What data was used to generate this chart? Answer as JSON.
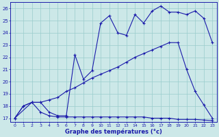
{
  "xlabel": "Graphe des températures (°c)",
  "bg_color": "#cce8e8",
  "grid_color": "#99cccc",
  "line_color": "#1a1aaa",
  "xlim": [
    -0.5,
    23.5
  ],
  "ylim": [
    16.7,
    26.5
  ],
  "xticks": [
    0,
    1,
    2,
    3,
    4,
    5,
    6,
    7,
    8,
    9,
    10,
    11,
    12,
    13,
    14,
    15,
    16,
    17,
    18,
    19,
    20,
    21,
    22,
    23
  ],
  "yticks": [
    17,
    18,
    19,
    20,
    21,
    22,
    23,
    24,
    25,
    26
  ],
  "line1_x": [
    0,
    1,
    2,
    3,
    4,
    5,
    6,
    7,
    8,
    9,
    10,
    11,
    12,
    13,
    14,
    15,
    16,
    17,
    18,
    19,
    20,
    21,
    22,
    23
  ],
  "line1_y": [
    17.0,
    18.0,
    18.3,
    17.5,
    17.2,
    17.1,
    17.1,
    17.1,
    17.1,
    17.1,
    17.1,
    17.1,
    17.1,
    17.1,
    17.1,
    17.1,
    17.0,
    17.0,
    17.0,
    16.9,
    16.9,
    16.9,
    16.85,
    16.8
  ],
  "line2_x": [
    0,
    1,
    2,
    3,
    4,
    5,
    6,
    7,
    8,
    9,
    10,
    11,
    12,
    13,
    14,
    15,
    16,
    17,
    18,
    19,
    20,
    21,
    22,
    23
  ],
  "line2_y": [
    17.0,
    18.0,
    18.3,
    18.3,
    18.5,
    18.7,
    19.2,
    19.5,
    19.9,
    20.3,
    20.6,
    20.9,
    21.2,
    21.6,
    22.0,
    22.3,
    22.6,
    22.9,
    23.2,
    23.2,
    21.0,
    19.2,
    18.1,
    17.0
  ],
  "line3_x": [
    0,
    2,
    3,
    4,
    5,
    6,
    7,
    8,
    9,
    10,
    11,
    12,
    13,
    14,
    15,
    16,
    17,
    18,
    19,
    20,
    21,
    22,
    23
  ],
  "line3_y": [
    17.0,
    18.3,
    18.3,
    17.5,
    17.2,
    17.2,
    22.2,
    20.2,
    20.9,
    24.8,
    25.4,
    24.0,
    23.8,
    25.5,
    24.8,
    25.8,
    26.2,
    25.7,
    25.7,
    25.5,
    25.8,
    25.2,
    23.2
  ]
}
